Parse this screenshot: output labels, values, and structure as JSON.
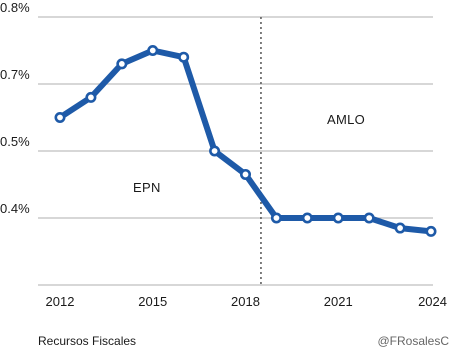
{
  "chart_data": {
    "type": "line",
    "title": "",
    "xlabel": "",
    "ylabel": "",
    "x": [
      2012,
      2013,
      2014,
      2015,
      2016,
      2017,
      2018,
      2019,
      2020,
      2021,
      2022,
      2023,
      2024
    ],
    "series": [
      {
        "values": [
          0.6,
          0.66,
          0.73,
          0.75,
          0.74,
          0.5,
          0.465,
          0.4,
          0.4,
          0.4,
          0.4,
          0.385,
          0.38
        ]
      }
    ],
    "y_ticks": [
      0.4,
      0.5,
      0.7,
      0.8
    ],
    "y_tick_labels": [
      "0.4%",
      "0.5%",
      "0.7%",
      "0.8%"
    ],
    "x_ticks": [
      2012,
      2015,
      2018,
      2021,
      2024
    ],
    "x_tick_labels": [
      "2012",
      "2015",
      "2018",
      "2021",
      "2024"
    ],
    "divider_x": 2018.5,
    "annotations": [
      {
        "text": "EPN"
      },
      {
        "text": "AMLO"
      }
    ],
    "grid": "horizontal",
    "colors": {
      "line": "#1e5aa8",
      "marker_fill": "#ffffff",
      "grid": "#bfbfbf",
      "divider": "#555555"
    }
  },
  "footer": {
    "source": "Recursos Fiscales",
    "credit": "@FRosalesC"
  }
}
